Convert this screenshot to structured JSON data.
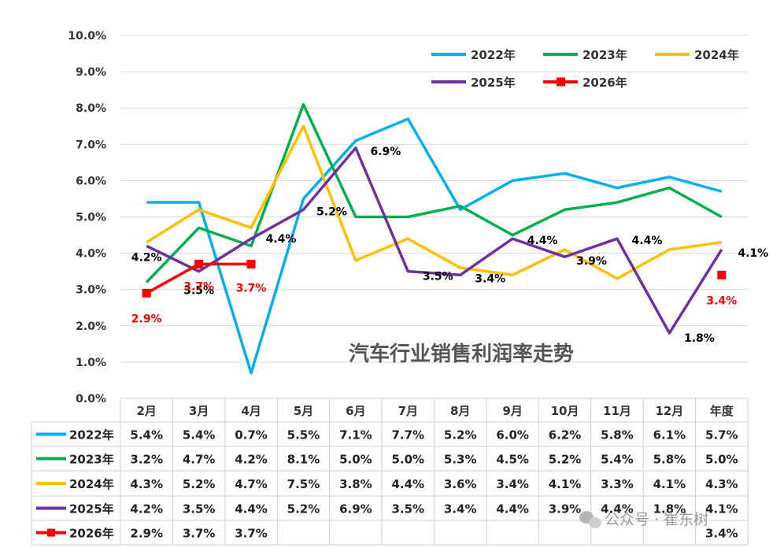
{
  "chart_data": {
    "type": "line",
    "title": "汽车行业销售利润率走势",
    "categories": [
      "2月",
      "3月",
      "4月",
      "5月",
      "6月",
      "7月",
      "8月",
      "9月",
      "10月",
      "11月",
      "12月",
      "年度"
    ],
    "ylim": [
      0,
      10
    ],
    "yticks": [
      "0.0%",
      "1.0%",
      "2.0%",
      "3.0%",
      "4.0%",
      "5.0%",
      "6.0%",
      "7.0%",
      "8.0%",
      "9.0%",
      "10.0%"
    ],
    "grid": true,
    "legend_position": "top-right",
    "series": [
      {
        "name": "2022年",
        "color": "#00b0f0",
        "marker": "none",
        "values": [
          5.4,
          5.4,
          0.7,
          5.5,
          7.1,
          7.7,
          5.2,
          6.0,
          6.2,
          5.8,
          6.1,
          5.7
        ],
        "table": [
          "5.4%",
          "5.4%",
          "0.7%",
          "5.5%",
          "7.1%",
          "7.7%",
          "5.2%",
          "6.0%",
          "6.2%",
          "5.8%",
          "6.1%",
          "5.7%"
        ]
      },
      {
        "name": "2023年",
        "color": "#00b050",
        "marker": "none",
        "values": [
          3.2,
          4.7,
          4.2,
          8.1,
          5.0,
          5.0,
          5.3,
          4.5,
          5.2,
          5.4,
          5.8,
          5.0
        ],
        "table": [
          "3.2%",
          "4.7%",
          "4.2%",
          "8.1%",
          "5.0%",
          "5.0%",
          "5.3%",
          "4.5%",
          "5.2%",
          "5.4%",
          "5.8%",
          "5.0%"
        ]
      },
      {
        "name": "2024年",
        "color": "#ffc000",
        "marker": "none",
        "values": [
          4.3,
          5.2,
          4.7,
          7.5,
          3.8,
          4.4,
          3.6,
          3.4,
          4.1,
          3.3,
          4.1,
          4.3
        ],
        "table": [
          "4.3%",
          "5.2%",
          "4.7%",
          "7.5%",
          "3.8%",
          "4.4%",
          "3.6%",
          "3.4%",
          "4.1%",
          "3.3%",
          "4.1%",
          "4.3%"
        ]
      },
      {
        "name": "2025年",
        "color": "#7030a0",
        "marker": "none",
        "values": [
          4.2,
          3.5,
          4.4,
          5.2,
          6.9,
          3.5,
          3.4,
          4.4,
          3.9,
          4.4,
          1.8,
          4.1
        ],
        "table": [
          "4.2%",
          "3.5%",
          "4.4%",
          "5.2%",
          "6.9%",
          "3.5%",
          "3.4%",
          "4.4%",
          "3.9%",
          "4.4%",
          "1.8%",
          "4.1%"
        ]
      },
      {
        "name": "2026年",
        "color": "#ff0000",
        "marker": "square",
        "values": [
          2.9,
          3.7,
          3.7,
          null,
          null,
          null,
          null,
          null,
          null,
          null,
          null,
          3.4
        ],
        "table": [
          "2.9%",
          "3.7%",
          "3.7%",
          "",
          "",
          "",
          "",
          "",
          "",
          "",
          "",
          "3.4%"
        ]
      }
    ],
    "data_labels": [
      {
        "series": 3,
        "index": 0,
        "text": "4.2%",
        "color": "#000000",
        "dx": 0,
        "dy": 14
      },
      {
        "series": 3,
        "index": 1,
        "text": "3.5%",
        "color": "#000000",
        "dx": 0,
        "dy": 24
      },
      {
        "series": 3,
        "index": 2,
        "text": "4.4%",
        "color": "#000000",
        "dx": 38,
        "dy": 0
      },
      {
        "series": 3,
        "index": 3,
        "text": "5.2%",
        "color": "#000000",
        "dx": 36,
        "dy": 2
      },
      {
        "series": 3,
        "index": 4,
        "text": "6.9%",
        "color": "#000000",
        "dx": 38,
        "dy": 4
      },
      {
        "series": 3,
        "index": 5,
        "text": "3.5%",
        "color": "#000000",
        "dx": 38,
        "dy": 6
      },
      {
        "series": 3,
        "index": 6,
        "text": "3.4%",
        "color": "#000000",
        "dx": 38,
        "dy": 4
      },
      {
        "series": 3,
        "index": 7,
        "text": "4.4%",
        "color": "#000000",
        "dx": 38,
        "dy": 2
      },
      {
        "series": 3,
        "index": 8,
        "text": "3.9%",
        "color": "#000000",
        "dx": 34,
        "dy": 5
      },
      {
        "series": 3,
        "index": 9,
        "text": "4.4%",
        "color": "#000000",
        "dx": 38,
        "dy": 2
      },
      {
        "series": 3,
        "index": 10,
        "text": "1.8%",
        "color": "#000000",
        "dx": 38,
        "dy": 6
      },
      {
        "series": 3,
        "index": 11,
        "text": "4.1%",
        "color": "#000000",
        "dx": 40,
        "dy": 4
      },
      {
        "series": 4,
        "index": 0,
        "text": "2.9%",
        "color": "#ff0000",
        "dx": 0,
        "dy": 32
      },
      {
        "series": 4,
        "index": 1,
        "text": "3.7%",
        "color": "#ff0000",
        "dx": 0,
        "dy": 28
      },
      {
        "series": 4,
        "index": 2,
        "text": "3.7%",
        "color": "#ff0000",
        "dx": 0,
        "dy": 30
      },
      {
        "series": 4,
        "index": 11,
        "text": "3.4%",
        "color": "#ff0000",
        "dx": 0,
        "dy": 32
      }
    ]
  },
  "watermark": "公众号 · 崔东树"
}
